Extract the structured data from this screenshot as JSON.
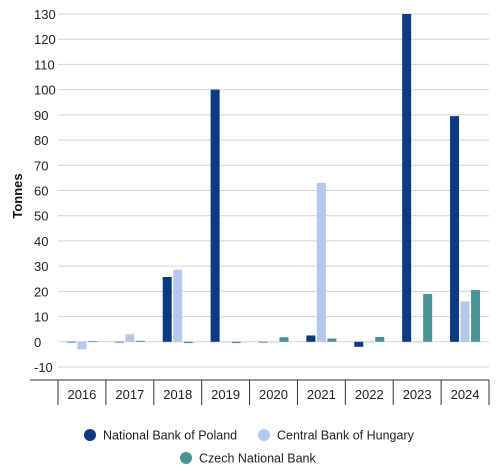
{
  "chart_data": {
    "type": "bar",
    "title": "",
    "xlabel": "",
    "ylabel": "Tonnes",
    "ylim": [
      -10,
      130
    ],
    "yticks": [
      -10,
      0,
      10,
      20,
      30,
      40,
      50,
      60,
      70,
      80,
      90,
      100,
      110,
      120,
      130
    ],
    "grid": "horizontal",
    "legend_position": "bottom",
    "categories": [
      "2016",
      "2017",
      "2018",
      "2019",
      "2020",
      "2021",
      "2022",
      "2023",
      "2024"
    ],
    "series": [
      {
        "name": "National Bank of Poland",
        "color": "#0b3a82",
        "values": [
          0,
          0,
          25.7,
          100,
          0,
          2.5,
          -2,
          130,
          89.5
        ]
      },
      {
        "name": "Central Bank of Hungary",
        "color": "#b3c8ec",
        "values": [
          -3,
          3,
          28.6,
          0,
          0,
          63,
          0,
          0,
          16
        ]
      },
      {
        "name": "Czech National Bank",
        "color": "#4a9296",
        "values": [
          0.3,
          0.4,
          -0.5,
          -0.5,
          1.8,
          1.3,
          1.9,
          19,
          20.5
        ]
      }
    ]
  }
}
